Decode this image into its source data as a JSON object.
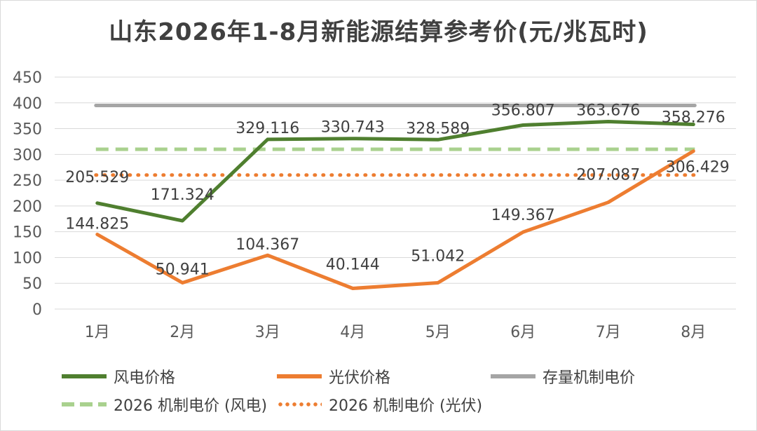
{
  "chart_data": {
    "type": "line",
    "title": "山东2026年1-8月新能源结算参考价(元/兆瓦时)",
    "categories": [
      "1月",
      "2月",
      "3月",
      "4月",
      "5月",
      "6月",
      "7月",
      "8月"
    ],
    "ylim": [
      0,
      450
    ],
    "yticks": [
      0,
      50,
      100,
      150,
      200,
      250,
      300,
      350,
      400,
      450
    ],
    "grid": true,
    "legend_position": "bottom",
    "series": [
      {
        "name": "风电价格",
        "values": [
          205.529,
          171.324,
          329.116,
          330.743,
          328.589,
          356.807,
          363.676,
          358.276
        ],
        "labels": [
          "205.529",
          "171.324",
          "329.116",
          "330.743",
          "328.589",
          "356.807",
          "363.676",
          "358.276"
        ],
        "color": "#4f7f2f",
        "style": "solid"
      },
      {
        "name": "光伏价格",
        "values": [
          144.825,
          50.941,
          104.367,
          40.144,
          51.042,
          149.367,
          207.087,
          306.429
        ],
        "labels": [
          "144.825",
          "50.941",
          "104.367",
          "40.144",
          "51.042",
          "149.367",
          "207.087",
          "306.429"
        ],
        "color": "#ed7d31",
        "style": "solid"
      },
      {
        "name": "存量机制电价",
        "values": [
          394.9,
          394.9,
          394.9,
          394.9,
          394.9,
          394.9,
          394.9,
          394.9
        ],
        "color": "#a5a5a5",
        "style": "solid"
      },
      {
        "name": "2026 机制电价 (风电)",
        "values": [
          310,
          310,
          310,
          310,
          310,
          310,
          310,
          310
        ],
        "color": "#a9d18e",
        "style": "dashed"
      },
      {
        "name": "2026 机制电价 (光伏)",
        "values": [
          260,
          260,
          260,
          260,
          260,
          260,
          260,
          260
        ],
        "color": "#ed7d31",
        "style": "dotted"
      }
    ]
  }
}
